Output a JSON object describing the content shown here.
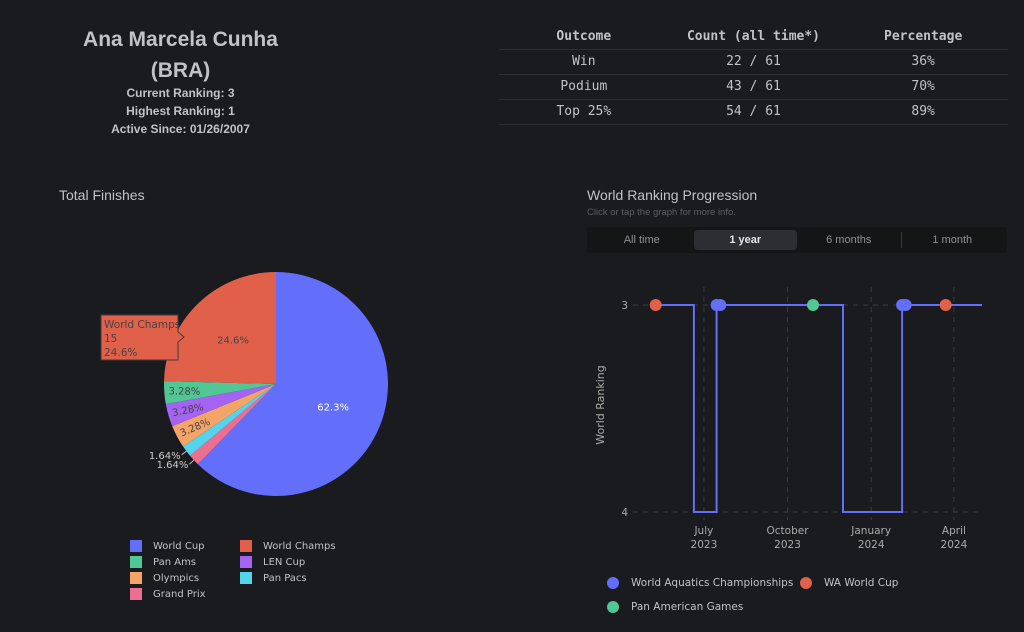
{
  "profile": {
    "name": "Ana Marcela Cunha",
    "country": "(BRA)",
    "current_ranking": {
      "label": "Current Ranking:",
      "value": "3"
    },
    "highest_ranking": {
      "label": "Highest Ranking:",
      "value": "1"
    },
    "active_since": {
      "label": "Active Since:",
      "value": "01/26/2007"
    }
  },
  "outcomes_table": {
    "headers": [
      "Outcome",
      "Count (all time*)",
      "Percentage"
    ],
    "rows": [
      [
        "Win",
        "22 / 61",
        "36%"
      ],
      [
        "Podium",
        "43 / 61",
        "70%"
      ],
      [
        "Top 25%",
        "54 / 61",
        "89%"
      ]
    ]
  },
  "total_finishes": {
    "title": "Total Finishes"
  },
  "ranking_progression": {
    "title": "World Ranking Progression",
    "subtitle": "Click or tap the graph for more info.",
    "range_options": [
      "All time",
      "1 year",
      "6 months",
      "1 month"
    ],
    "selected_range": "1 year"
  },
  "chart_data": [
    {
      "type": "pie",
      "title": "Total Finishes",
      "categories": [
        "World Cup",
        "World Champs",
        "Pan Ams",
        "LEN Cup",
        "Olympics",
        "Pan Pacs",
        "Grand Prix"
      ],
      "values": [
        38,
        15,
        2,
        2,
        2,
        1,
        1
      ],
      "text_labels": [
        "62.3%",
        "24.6%",
        "3.28%",
        "3.28%",
        "3.28%",
        "1.64%",
        "1.64%"
      ],
      "colors": [
        "#636efa",
        "#e0604a",
        "#50c794",
        "#a463f2",
        "#f4a467",
        "#55d2ec",
        "#ec6f91"
      ],
      "direction": "clockwise",
      "legend": "bottom",
      "hover": {
        "category": "World Champs",
        "value": "15",
        "percent": "24.6%"
      }
    },
    {
      "type": "line",
      "title": "World Ranking Progression",
      "xlabel": "",
      "ylabel": "World Ranking",
      "xrange": [
        "2023-04-14",
        "2024-05-03"
      ],
      "yrange": [
        3,
        4
      ],
      "y_reversed": true,
      "yticks": [
        3,
        4
      ],
      "xticks": [
        {
          "date": "2023-07-01",
          "label": [
            "July",
            "2023"
          ]
        },
        {
          "date": "2023-10-01",
          "label": [
            "October",
            "2023"
          ]
        },
        {
          "date": "2024-01-01",
          "label": [
            "January",
            "2024"
          ]
        },
        {
          "date": "2024-04-01",
          "label": [
            "April",
            "2024"
          ]
        }
      ],
      "grid": true,
      "ranking_line": {
        "shape": "hv",
        "color": "#636efa",
        "points": [
          {
            "x": "2023-05-09",
            "y": 3
          },
          {
            "x": "2023-06-20",
            "y": 4
          },
          {
            "x": "2023-07-15",
            "y": 3
          },
          {
            "x": "2023-12-01",
            "y": 4
          },
          {
            "x": "2024-02-04",
            "y": 3
          },
          {
            "x": "2024-05-02",
            "y": 3
          }
        ]
      },
      "series": [
        {
          "name": "World Aquatics Championships",
          "color": "#636efa",
          "points": [
            {
              "x": "2023-07-15",
              "y": 3
            },
            {
              "x": "2023-07-19",
              "y": 3
            },
            {
              "x": "2024-02-04",
              "y": 3
            },
            {
              "x": "2024-02-08",
              "y": 3
            }
          ]
        },
        {
          "name": "WA World Cup",
          "color": "#e0604a",
          "points": [
            {
              "x": "2023-05-09",
              "y": 3
            },
            {
              "x": "2024-03-23",
              "y": 3
            }
          ]
        },
        {
          "name": "Pan American Games",
          "color": "#50c794",
          "points": [
            {
              "x": "2023-10-29",
              "y": 3
            }
          ]
        }
      ],
      "legend": "bottom"
    }
  ]
}
